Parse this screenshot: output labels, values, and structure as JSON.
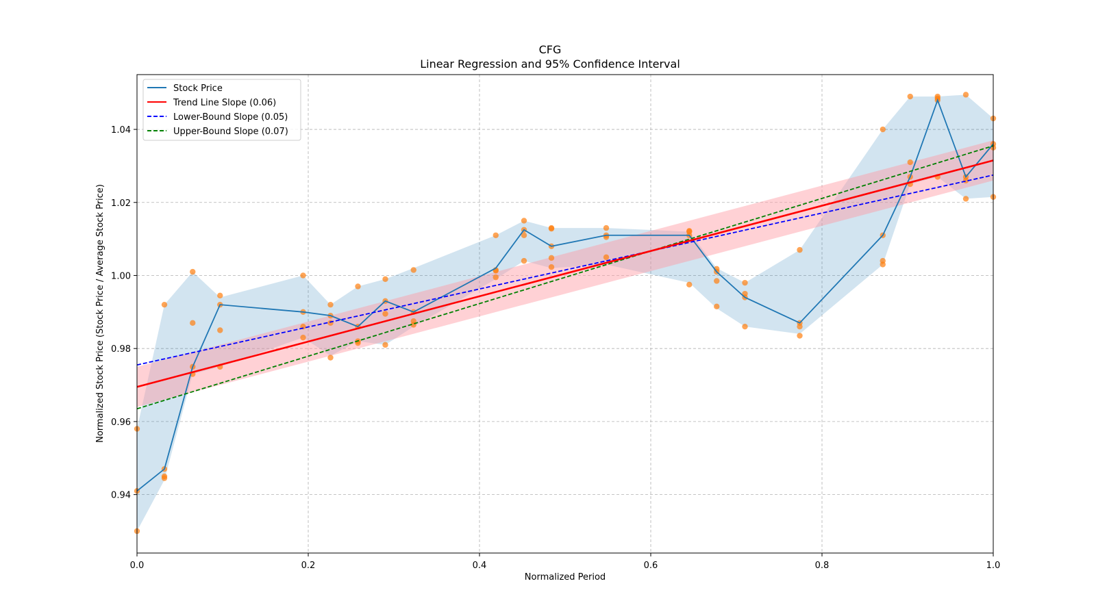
{
  "chart_data": {
    "type": "line",
    "title": "CFG",
    "subtitle": "Linear Regression and 95% Confidence Interval",
    "xlabel": "Normalized Period",
    "ylabel": "Normalized Stock Price (Stock Price / Average Stock Price)",
    "xlim": [
      0,
      1
    ],
    "ylim": [
      0.924,
      1.055
    ],
    "xticks": [
      0.0,
      0.2,
      0.4,
      0.6,
      0.8,
      1.0
    ],
    "xtick_labels": [
      "0.0",
      "0.2",
      "0.4",
      "0.6",
      "0.8",
      "1.0"
    ],
    "yticks": [
      0.94,
      0.96,
      0.98,
      1.0,
      1.02,
      1.04
    ],
    "ytick_labels": [
      "0.94",
      "0.96",
      "0.98",
      "1.00",
      "1.02",
      "1.04"
    ],
    "grid": true,
    "legend_position": "top-left",
    "legend": [
      "Stock Price",
      "Trend Line Slope (0.06)",
      "Lower-Bound Slope (0.05)",
      "Upper-Bound Slope (0.07)"
    ],
    "colors": {
      "stock": "#1f77b4",
      "band": "#1f77b4",
      "points": "#ff7f0e",
      "trend": "#ff0000",
      "trend_ci": "#ff9aa2",
      "lower": "#0000ff",
      "upper": "#008000"
    },
    "stock_price": {
      "x": [
        0.0,
        0.032,
        0.065,
        0.097,
        0.194,
        0.226,
        0.258,
        0.29,
        0.323,
        0.419,
        0.452,
        0.484,
        0.548,
        0.645,
        0.677,
        0.71,
        0.774,
        0.871,
        0.903,
        0.935,
        0.968,
        1.0
      ],
      "y": [
        0.941,
        0.947,
        0.975,
        0.992,
        0.99,
        0.989,
        0.986,
        0.993,
        0.99,
        1.002,
        1.0125,
        1.008,
        1.011,
        1.011,
        1.001,
        0.994,
        0.987,
        1.011,
        1.027,
        1.048,
        1.027,
        1.036
      ]
    },
    "price_band": {
      "x": [
        0.0,
        0.032,
        0.065,
        0.097,
        0.194,
        0.226,
        0.258,
        0.29,
        0.323,
        0.419,
        0.452,
        0.484,
        0.548,
        0.645,
        0.677,
        0.71,
        0.774,
        0.871,
        0.903,
        0.935,
        0.968,
        1.0
      ],
      "upper": [
        0.958,
        0.992,
        1.001,
        0.994,
        1.0,
        0.992,
        0.997,
        0.999,
        1.002,
        1.011,
        1.015,
        1.013,
        1.013,
        1.012,
        1.002,
        0.998,
        1.007,
        1.04,
        1.049,
        1.049,
        1.0495,
        1.043
      ],
      "lower": [
        0.93,
        0.944,
        0.973,
        0.975,
        0.983,
        0.978,
        0.982,
        0.981,
        0.986,
        0.999,
        1.004,
        1.002,
        1.003,
        0.998,
        0.991,
        0.986,
        0.984,
        1.003,
        1.025,
        1.027,
        1.021,
        1.0215
      ]
    },
    "observations": {
      "x": [
        0.0,
        0.0,
        0.0,
        0.032,
        0.032,
        0.032,
        0.032,
        0.065,
        0.065,
        0.065,
        0.065,
        0.097,
        0.097,
        0.097,
        0.097,
        0.194,
        0.194,
        0.194,
        0.194,
        0.226,
        0.226,
        0.226,
        0.226,
        0.258,
        0.258,
        0.258,
        0.258,
        0.29,
        0.29,
        0.29,
        0.29,
        0.323,
        0.323,
        0.323,
        0.323,
        0.419,
        0.419,
        0.419,
        0.419,
        0.452,
        0.452,
        0.452,
        0.452,
        0.484,
        0.484,
        0.484,
        0.484,
        0.484,
        0.548,
        0.548,
        0.548,
        0.548,
        0.645,
        0.645,
        0.645,
        0.645,
        0.677,
        0.677,
        0.677,
        0.677,
        0.71,
        0.71,
        0.71,
        0.71,
        0.774,
        0.774,
        0.774,
        0.774,
        0.871,
        0.871,
        0.871,
        0.871,
        0.903,
        0.903,
        0.903,
        0.903,
        0.935,
        0.935,
        0.935,
        0.935,
        0.968,
        0.968,
        0.968,
        0.968,
        1.0,
        1.0,
        1.0,
        1.0
      ],
      "y": [
        0.958,
        0.941,
        0.93,
        0.992,
        0.947,
        0.945,
        0.9445,
        1.001,
        0.987,
        0.975,
        0.973,
        0.9945,
        0.992,
        0.985,
        0.975,
        1.0,
        0.99,
        0.986,
        0.983,
        0.992,
        0.989,
        0.987,
        0.9775,
        0.997,
        0.986,
        0.982,
        0.9815,
        0.999,
        0.993,
        0.9895,
        0.981,
        1.0015,
        0.99,
        0.9875,
        0.9865,
        1.011,
        1.0015,
        1.0013,
        0.9995,
        1.015,
        1.0125,
        1.011,
        1.004,
        1.013,
        1.0128,
        1.008,
        1.0048,
        1.0023,
        1.013,
        1.011,
        1.0105,
        1.005,
        1.0122,
        1.012,
        1.011,
        0.9975,
        1.0018,
        1.001,
        0.9985,
        0.9915,
        0.998,
        0.995,
        0.994,
        0.986,
        1.007,
        0.987,
        0.986,
        0.9835,
        1.04,
        1.011,
        1.004,
        1.003,
        1.049,
        1.031,
        1.027,
        1.025,
        1.049,
        1.0485,
        1.048,
        1.027,
        1.0495,
        1.027,
        1.026,
        1.021,
        1.043,
        1.036,
        1.035,
        1.0215
      ]
    },
    "trend_line": {
      "x": [
        0,
        1
      ],
      "y": [
        0.9695,
        1.0315
      ],
      "ci_halfwidth": [
        0.0055,
        0.0055
      ]
    },
    "lower_bound_line": {
      "x": [
        0,
        1
      ],
      "y": [
        0.9755,
        1.0275
      ]
    },
    "upper_bound_line": {
      "x": [
        0,
        1
      ],
      "y": [
        0.9635,
        1.0355
      ]
    }
  }
}
